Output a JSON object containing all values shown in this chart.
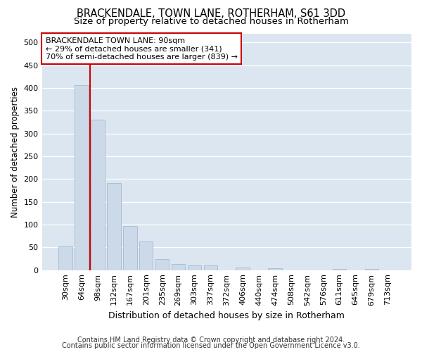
{
  "title": "BRACKENDALE, TOWN LANE, ROTHERHAM, S61 3DD",
  "subtitle": "Size of property relative to detached houses in Rotherham",
  "xlabel": "Distribution of detached houses by size in Rotherham",
  "ylabel": "Number of detached properties",
  "categories": [
    "30sqm",
    "64sqm",
    "98sqm",
    "132sqm",
    "167sqm",
    "201sqm",
    "235sqm",
    "269sqm",
    "303sqm",
    "337sqm",
    "372sqm",
    "406sqm",
    "440sqm",
    "474sqm",
    "508sqm",
    "542sqm",
    "576sqm",
    "611sqm",
    "645sqm",
    "679sqm",
    "713sqm"
  ],
  "values": [
    52,
    406,
    330,
    192,
    97,
    63,
    25,
    14,
    10,
    10,
    0,
    6,
    0,
    4,
    0,
    0,
    0,
    2,
    0,
    3,
    0
  ],
  "bar_color": "#ccd9e8",
  "bar_edge_color": "#99b3cc",
  "vline_color": "#cc0000",
  "vline_x": 1.5,
  "annotation_text": "BRACKENDALE TOWN LANE: 90sqm\n← 29% of detached houses are smaller (341)\n70% of semi-detached houses are larger (839) →",
  "annotation_box_facecolor": "#ffffff",
  "annotation_box_edgecolor": "#cc0000",
  "ylim": [
    0,
    520
  ],
  "yticks": [
    0,
    50,
    100,
    150,
    200,
    250,
    300,
    350,
    400,
    450,
    500
  ],
  "footer_line1": "Contains HM Land Registry data © Crown copyright and database right 2024.",
  "footer_line2": "Contains public sector information licensed under the Open Government Licence v3.0.",
  "fig_bg_color": "#ffffff",
  "plot_bg_color": "#dce6f0",
  "grid_color": "#ffffff",
  "title_fontsize": 10.5,
  "subtitle_fontsize": 9.5,
  "ylabel_fontsize": 8.5,
  "xlabel_fontsize": 9,
  "tick_fontsize": 8,
  "annotation_fontsize": 8,
  "footer_fontsize": 7
}
